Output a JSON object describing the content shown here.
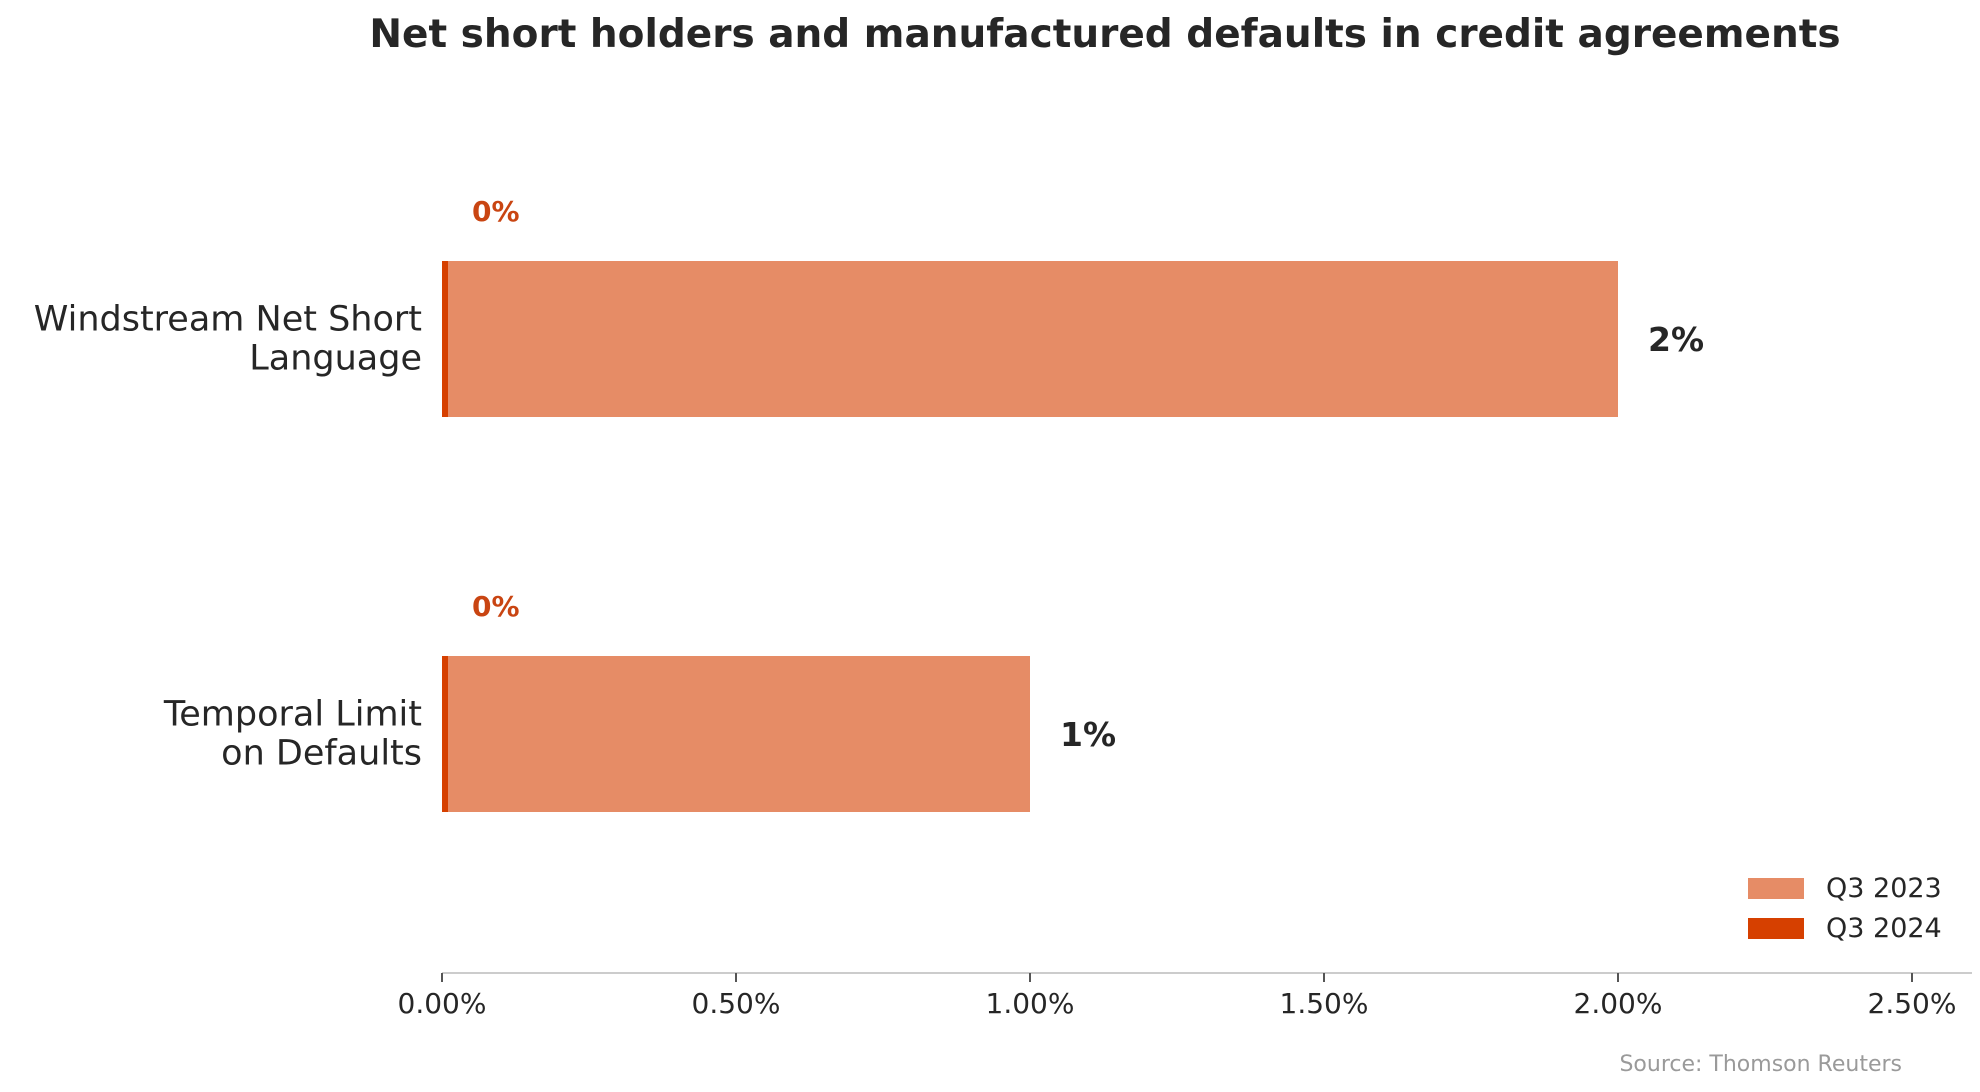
{
  "title": "Net short holders and manufactured defaults in credit agreements",
  "source": "Source: Thomson Reuters",
  "colors": {
    "q3_2023": "#E68C66",
    "q3_2024": "#D64000",
    "text": "#262626",
    "axis": "#cccccc",
    "source": "#9a9a9a"
  },
  "legend": {
    "items": [
      {
        "label": "Q3 2023",
        "color": "#E68C66"
      },
      {
        "label": "Q3 2024",
        "color": "#D64000"
      }
    ]
  },
  "chart_data": {
    "type": "bar",
    "orientation": "horizontal",
    "title": "Net short holders and manufactured defaults in credit agreements",
    "categories": [
      [
        "Windstream Net Short",
        "Language"
      ],
      [
        "Temporal Limit",
        "on Defaults"
      ]
    ],
    "series": [
      {
        "name": "Q3 2023",
        "values": [
          2.0,
          1.0
        ],
        "labels": [
          "2%",
          "1%"
        ]
      },
      {
        "name": "Q3 2024",
        "values": [
          0.0,
          0.0
        ],
        "labels": [
          "0%",
          "0%"
        ]
      }
    ],
    "xlim": [
      0,
      2.6
    ],
    "xticks": [
      0,
      0.5,
      1.0,
      1.5,
      2.0,
      2.5
    ],
    "xtick_labels": [
      "0.00%",
      "0.50%",
      "1.00%",
      "1.50%",
      "2.00%",
      "2.50%"
    ],
    "xlabel": "",
    "ylabel": "",
    "grid": false,
    "legend_position": "bottom-right"
  }
}
